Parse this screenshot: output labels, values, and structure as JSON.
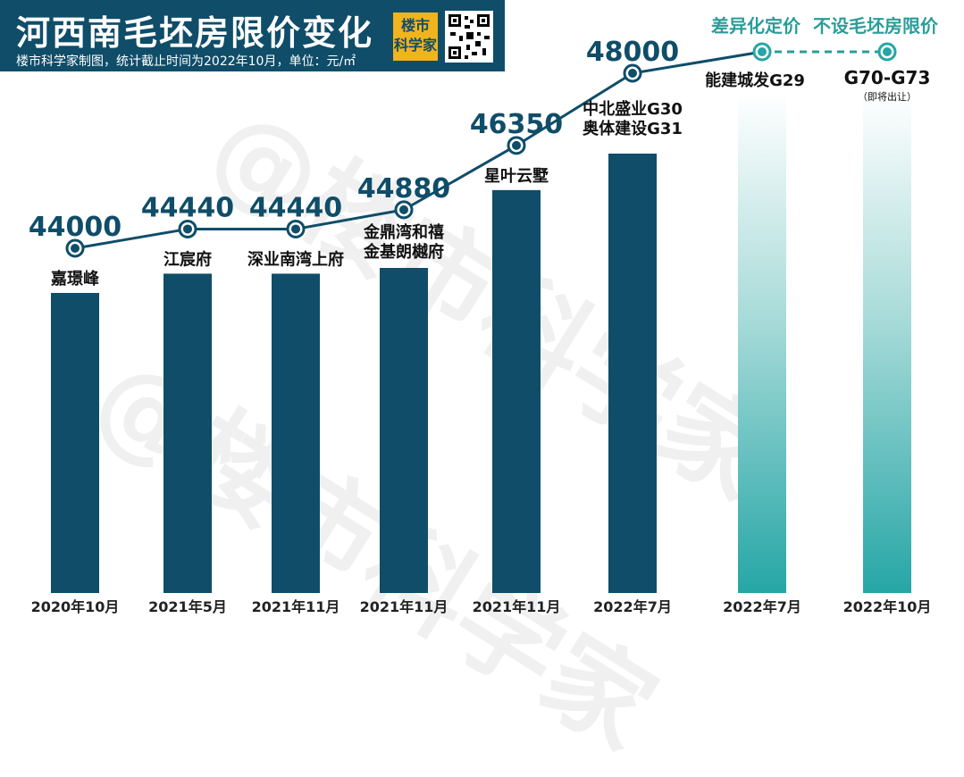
{
  "header": {
    "title": "河西南毛坯房限价变化",
    "subtitle": "楼市科学家制图，统计截止时间为2022年10月，单位：元/㎡",
    "logo_line1": "楼市",
    "logo_line2": "科学家"
  },
  "watermark": "@楼市科学家",
  "annotation_top_right": "差异化定价  不设毛坯房限价",
  "chart_data": {
    "type": "bar",
    "title": "河西南毛坯房限价变化",
    "subtitle": "楼市科学家制图，统计截止时间为2022年10月，单位：元/㎡",
    "categories": [
      "2020年10月",
      "2021年5月",
      "2021年11月",
      "2021年11月",
      "2021年11月",
      "2022年7月",
      "2022年7月",
      "2022年10月"
    ],
    "projects": [
      [
        "嘉璟峰"
      ],
      [
        "江宸府"
      ],
      [
        "深业南湾上府"
      ],
      [
        "金鼎湾和禧",
        "金基朗樾府"
      ],
      [
        "星叶云墅"
      ],
      [
        "中北盛业G30",
        "奥体建设G31"
      ],
      [
        "能建城发G29"
      ],
      [
        "G70-G73"
      ]
    ],
    "project_notes": [
      "",
      "",
      "",
      "",
      "",
      "",
      "",
      "（即将出让）"
    ],
    "values": [
      44000,
      44440,
      44440,
      44880,
      46350,
      48000,
      null,
      null
    ],
    "value_labels": [
      "44000",
      "44440",
      "44440",
      "44880",
      "46350",
      "48000",
      "",
      ""
    ],
    "no_price_cap": [
      false,
      false,
      false,
      false,
      false,
      false,
      true,
      true
    ],
    "ylim": [
      38000,
      50000
    ],
    "legend": "none",
    "grid": false
  },
  "colors": {
    "header_bg": "#0f4d69",
    "bar": "#0f4d69",
    "line": "#0f4d69",
    "value_text": "#0f4d69",
    "no_cap_bar": "#26a6a6",
    "no_cap_text": "#2a9d98",
    "logo_bg": "#f1b41c"
  }
}
